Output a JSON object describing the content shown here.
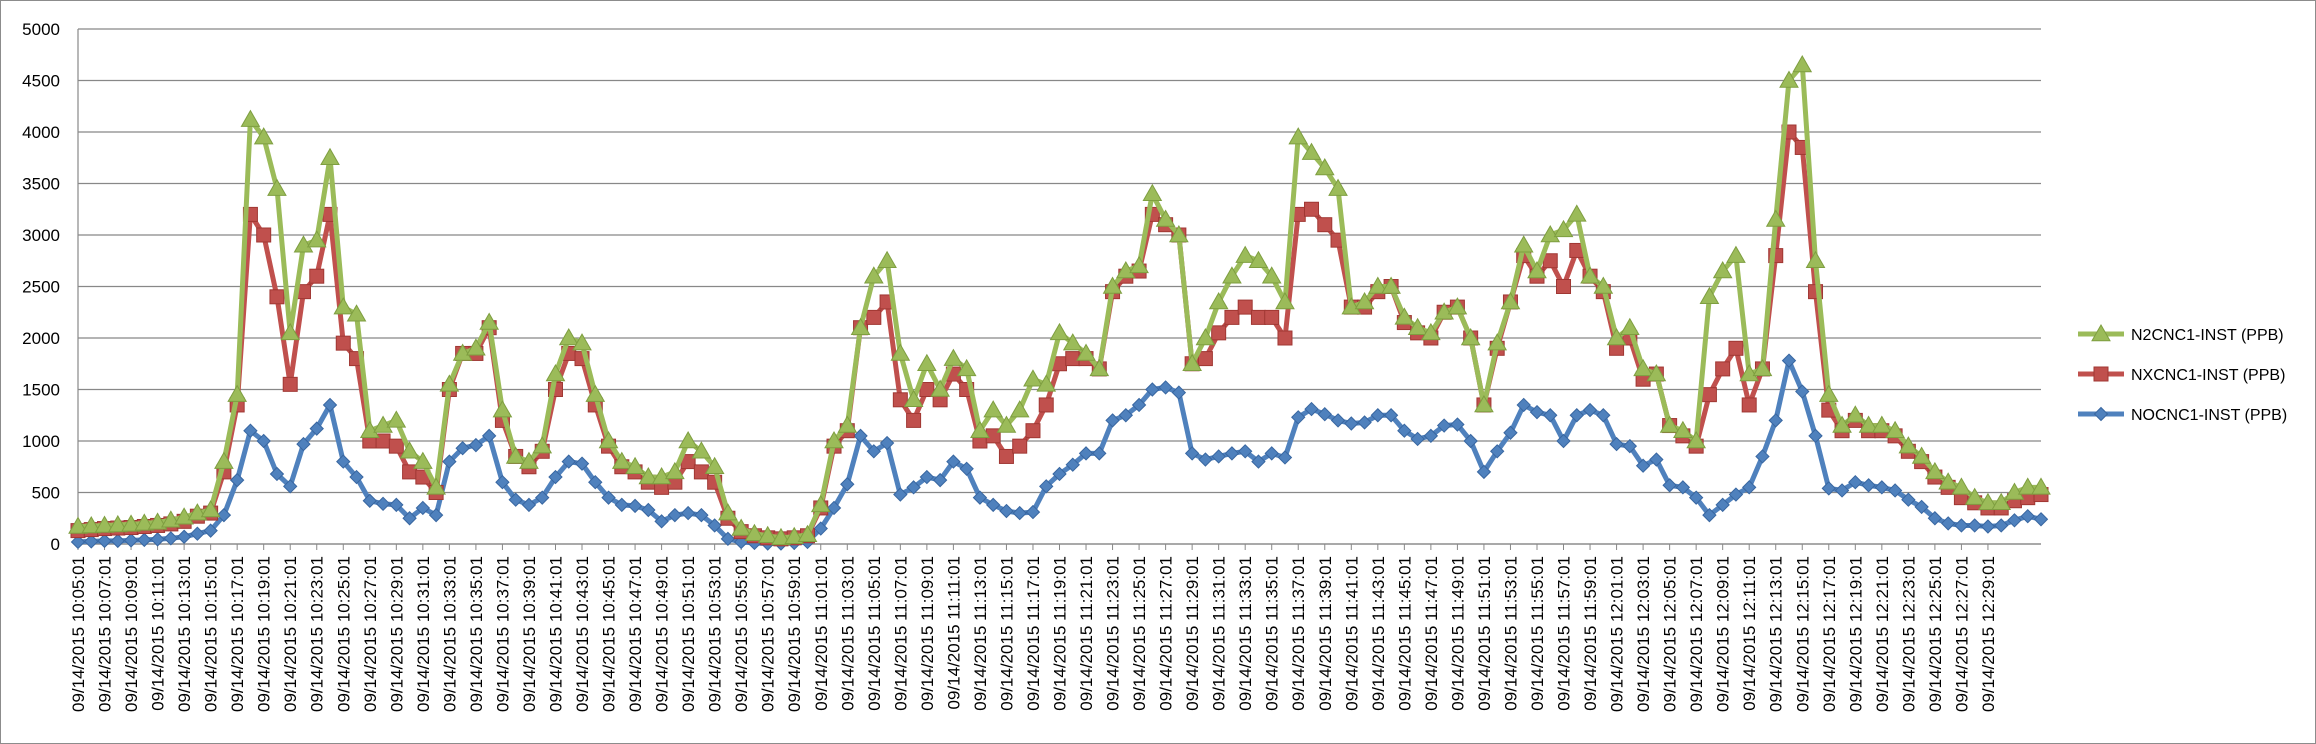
{
  "chart_data": {
    "type": "line",
    "title": "",
    "xlabel": "",
    "ylabel": "",
    "ylim": [
      0,
      5000
    ],
    "y_ticks": [
      0,
      500,
      1000,
      1500,
      2000,
      2500,
      3000,
      3500,
      4000,
      4500,
      5000
    ],
    "grid": "horizontal",
    "legend_position": "right",
    "x_tick_labels": [
      "09/14/2015 10:05:01",
      "09/14/2015 10:07:01",
      "09/14/2015 10:09:01",
      "09/14/2015 10:11:01",
      "09/14/2015 10:13:01",
      "09/14/2015 10:15:01",
      "09/14/2015 10:17:01",
      "09/14/2015 10:19:01",
      "09/14/2015 10:21:01",
      "09/14/2015 10:23:01",
      "09/14/2015 10:25:01",
      "09/14/2015 10:27:01",
      "09/14/2015 10:29:01",
      "09/14/2015 10:31:01",
      "09/14/2015 10:33:01",
      "09/14/2015 10:35:01",
      "09/14/2015 10:37:01",
      "09/14/2015 10:39:01",
      "09/14/2015 10:41:01",
      "09/14/2015 10:43:01",
      "09/14/2015 10:45:01",
      "09/14/2015 10:47:01",
      "09/14/2015 10:49:01",
      "09/14/2015 10:51:01",
      "09/14/2015 10:53:01",
      "09/14/2015 10:55:01",
      "09/14/2015 10:57:01",
      "09/14/2015 10:59:01",
      "09/14/2015 11:01:01",
      "09/14/2015 11:03:01",
      "09/14/2015 11:05:01",
      "09/14/2015 11:07:01",
      "09/14/2015 11:09:01",
      "09/14/2015 11:11:01",
      "09/14/2015 11:13:01",
      "09/14/2015 11:15:01",
      "09/14/2015 11:17:01",
      "09/14/2015 11:19:01",
      "09/14/2015 11:21:01",
      "09/14/2015 11:23:01",
      "09/14/2015 11:25:01",
      "09/14/2015 11:27:01",
      "09/14/2015 11:29:01",
      "09/14/2015 11:31:01",
      "09/14/2015 11:33:01",
      "09/14/2015 11:35:01",
      "09/14/2015 11:37:01",
      "09/14/2015 11:39:01",
      "09/14/2015 11:41:01",
      "09/14/2015 11:43:01",
      "09/14/2015 11:45:01",
      "09/14/2015 11:47:01",
      "09/14/2015 11:49:01",
      "09/14/2015 11:51:01",
      "09/14/2015 11:53:01",
      "09/14/2015 11:55:01",
      "09/14/2015 11:57:01",
      "09/14/2015 11:59:01",
      "09/14/2015 12:01:01",
      "09/14/2015 12:03:01",
      "09/14/2015 12:05:01",
      "09/14/2015 12:07:01",
      "09/14/2015 12:09:01",
      "09/14/2015 12:11:01",
      "09/14/2015 12:13:01",
      "09/14/2015 12:15:01",
      "09/14/2015 12:17:01",
      "09/14/2015 12:19:01",
      "09/14/2015 12:21:01",
      "09/14/2015 12:23:01",
      "09/14/2015 12:25:01",
      "09/14/2015 12:27:01",
      "09/14/2015 12:29:01"
    ],
    "series": [
      {
        "name": "N2CNC1-INST (PPB)",
        "color": "#9BBB59",
        "marker": "triangle",
        "values": [
          170,
          175,
          180,
          185,
          190,
          200,
          210,
          230,
          260,
          300,
          330,
          800,
          1450,
          4120,
          3950,
          3450,
          2050,
          2900,
          2950,
          3750,
          2300,
          2230,
          1100,
          1150,
          1200,
          900,
          800,
          550,
          1550,
          1850,
          1900,
          2150,
          1300,
          850,
          800,
          950,
          1650,
          2000,
          1950,
          1450,
          1000,
          800,
          750,
          650,
          650,
          700,
          1000,
          900,
          750,
          300,
          150,
          100,
          80,
          60,
          70,
          90,
          380,
          1000,
          1150,
          2100,
          2600,
          2750,
          1850,
          1400,
          1750,
          1500,
          1800,
          1700,
          1100,
          1300,
          1150,
          1300,
          1600,
          1550,
          2050,
          1950,
          1850,
          1700,
          2500,
          2650,
          2700,
          3400,
          3150,
          3000,
          1750,
          2000,
          2350,
          2600,
          2800,
          2750,
          2600,
          2350,
          3950,
          3800,
          3650,
          3450,
          2300,
          2350,
          2500,
          2500,
          2200,
          2100,
          2050,
          2250,
          2300,
          2000,
          1350,
          1950,
          2350,
          2900,
          2650,
          3000,
          3050,
          3200,
          2600,
          2500,
          2000,
          2100,
          1700,
          1650,
          1150,
          1100,
          1000,
          2400,
          2650,
          2800,
          1650,
          1700,
          3150,
          4500,
          4650,
          2750,
          1450,
          1150,
          1250,
          1150,
          1150,
          1100,
          950,
          850,
          700,
          600,
          550,
          450,
          400,
          400,
          500,
          550,
          550
        ]
      },
      {
        "name": "NXCNC1-INST (PPB)",
        "color": "#C0504D",
        "marker": "square",
        "values": [
          130,
          140,
          150,
          155,
          160,
          170,
          180,
          195,
          220,
          270,
          300,
          700,
          1350,
          3200,
          3000,
          2400,
          1550,
          2450,
          2600,
          3200,
          1950,
          1800,
          1000,
          1000,
          950,
          700,
          650,
          500,
          1500,
          1850,
          1850,
          2100,
          1200,
          850,
          750,
          900,
          1500,
          1850,
          1800,
          1350,
          950,
          750,
          700,
          600,
          550,
          600,
          800,
          700,
          600,
          250,
          120,
          80,
          60,
          50,
          60,
          80,
          350,
          950,
          1100,
          2100,
          2200,
          2350,
          1400,
          1200,
          1500,
          1400,
          1650,
          1500,
          1000,
          1050,
          850,
          950,
          1100,
          1350,
          1750,
          1800,
          1800,
          1700,
          2450,
          2600,
          2650,
          3200,
          3100,
          3000,
          1750,
          1800,
          2050,
          2200,
          2300,
          2200,
          2200,
          2000,
          3200,
          3250,
          3100,
          2950,
          2300,
          2300,
          2450,
          2500,
          2150,
          2050,
          2000,
          2250,
          2300,
          2000,
          1350,
          1900,
          2350,
          2800,
          2600,
          2750,
          2500,
          2850,
          2600,
          2450,
          1900,
          2000,
          1600,
          1650,
          1150,
          1050,
          950,
          1450,
          1700,
          1900,
          1350,
          1700,
          2800,
          4000,
          3850,
          2450,
          1300,
          1100,
          1200,
          1100,
          1100,
          1050,
          900,
          800,
          650,
          550,
          450,
          400,
          350,
          350,
          420,
          450,
          480
        ]
      },
      {
        "name": "NOCNC1-INST (PPB)",
        "color": "#4F81BD",
        "marker": "diamond",
        "values": [
          20,
          25,
          30,
          30,
          35,
          40,
          45,
          55,
          70,
          100,
          130,
          280,
          620,
          1100,
          1000,
          680,
          560,
          970,
          1120,
          1350,
          800,
          650,
          420,
          390,
          380,
          250,
          350,
          280,
          800,
          930,
          960,
          1050,
          600,
          430,
          380,
          450,
          650,
          800,
          780,
          600,
          450,
          380,
          370,
          330,
          220,
          280,
          300,
          280,
          180,
          50,
          20,
          10,
          5,
          5,
          10,
          20,
          150,
          350,
          580,
          1050,
          900,
          980,
          480,
          550,
          650,
          620,
          800,
          730,
          450,
          380,
          320,
          300,
          310,
          560,
          680,
          770,
          880,
          880,
          1200,
          1250,
          1350,
          1500,
          1520,
          1470,
          880,
          820,
          850,
          880,
          900,
          800,
          880,
          840,
          1230,
          1310,
          1260,
          1200,
          1170,
          1180,
          1250,
          1250,
          1100,
          1020,
          1050,
          1150,
          1160,
          1000,
          700,
          900,
          1080,
          1350,
          1280,
          1250,
          1000,
          1250,
          1300,
          1250,
          970,
          950,
          760,
          820,
          570,
          550,
          450,
          280,
          380,
          480,
          550,
          850,
          1200,
          1780,
          1480,
          1050,
          540,
          520,
          600,
          570,
          550,
          520,
          430,
          360,
          250,
          200,
          180,
          180,
          170,
          180,
          230,
          270,
          240
        ]
      }
    ]
  }
}
